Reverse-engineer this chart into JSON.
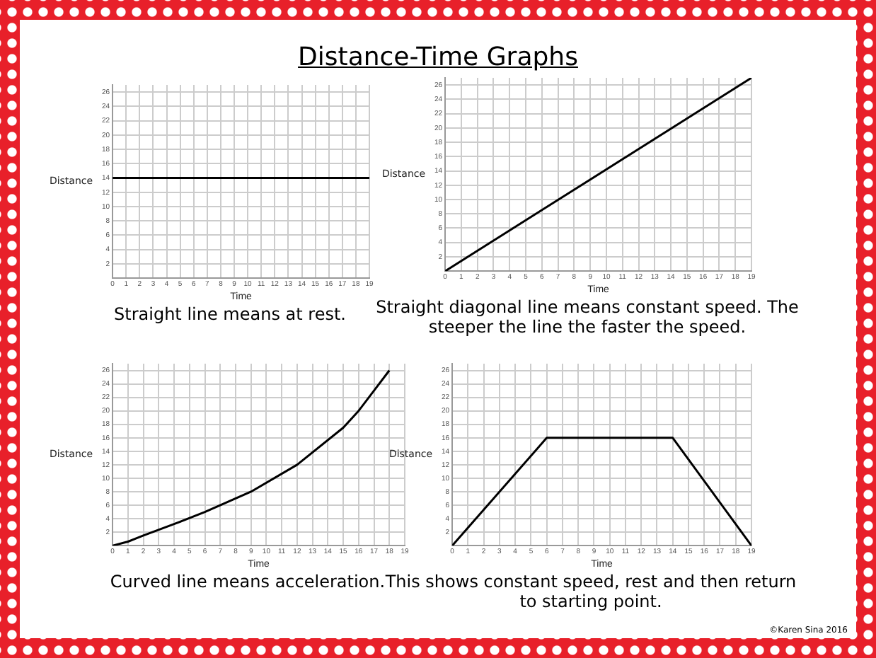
{
  "chart_data": [
    {
      "type": "line",
      "title": "Distance-Time Graphs",
      "xlabel": "Time",
      "ylabel": "Distance",
      "x": [
        0,
        19
      ],
      "values": [
        14,
        14
      ],
      "color": "#000000",
      "xlim": [
        0,
        19
      ],
      "xticks": [
        0,
        1,
        2,
        3,
        4,
        5,
        6,
        7,
        8,
        9,
        10,
        11,
        12,
        13,
        14,
        15,
        16,
        17,
        18,
        19
      ],
      "ylim": [
        0,
        27
      ],
      "yticks": [
        2,
        4,
        6,
        8,
        10,
        12,
        14,
        16,
        18,
        20,
        22,
        24,
        26
      ],
      "grid": true,
      "marker": "none",
      "annotations": [
        "Straight line means at rest."
      ]
    },
    {
      "type": "line",
      "xlabel": "Time",
      "ylabel": "Distance",
      "x": [
        0,
        19
      ],
      "values": [
        0,
        27
      ],
      "color": "#000000",
      "xlim": [
        0,
        19
      ],
      "xticks": [
        0,
        1,
        2,
        3,
        4,
        5,
        6,
        7,
        8,
        9,
        10,
        11,
        12,
        13,
        14,
        15,
        16,
        17,
        18,
        19
      ],
      "ylim": [
        0,
        27
      ],
      "yticks": [
        2,
        4,
        6,
        8,
        10,
        12,
        14,
        16,
        18,
        20,
        22,
        24,
        26
      ],
      "grid": true,
      "marker": "none",
      "annotations": [
        "Straight diagonal line means constant speed. The steeper the line the faster the speed."
      ]
    },
    {
      "type": "line",
      "xlabel": "Time",
      "ylabel": "Distance",
      "x": [
        0,
        1,
        2,
        4,
        6,
        9,
        12,
        15,
        16,
        17,
        18
      ],
      "values": [
        0,
        0.6,
        1.5,
        3.2,
        5,
        8,
        12,
        17.5,
        20,
        23,
        26
      ],
      "color": "#000000",
      "xlim": [
        0,
        19
      ],
      "xticks": [
        0,
        1,
        2,
        3,
        4,
        5,
        6,
        7,
        8,
        9,
        10,
        11,
        12,
        13,
        14,
        15,
        16,
        17,
        18,
        19
      ],
      "ylim": [
        0,
        27
      ],
      "yticks": [
        2,
        4,
        6,
        8,
        10,
        12,
        14,
        16,
        18,
        20,
        22,
        24,
        26
      ],
      "grid": true,
      "marker": "none",
      "annotations": [
        "Curved line means acceleration."
      ]
    },
    {
      "type": "line",
      "xlabel": "Time",
      "ylabel": "Distance",
      "x": [
        0,
        6,
        14,
        19
      ],
      "values": [
        0,
        16,
        16,
        0
      ],
      "color": "#000000",
      "xlim": [
        0,
        19
      ],
      "xticks": [
        0,
        1,
        2,
        3,
        4,
        5,
        6,
        7,
        8,
        9,
        10,
        11,
        12,
        13,
        14,
        15,
        16,
        17,
        18,
        19
      ],
      "ylim": [
        0,
        27
      ],
      "yticks": [
        2,
        4,
        6,
        8,
        10,
        12,
        14,
        16,
        18,
        20,
        22,
        24,
        26
      ],
      "grid": true,
      "marker": "none",
      "annotations": [
        "This shows constant speed, rest and then return to starting point.",
        "©Karen Sina 2016"
      ]
    }
  ]
}
